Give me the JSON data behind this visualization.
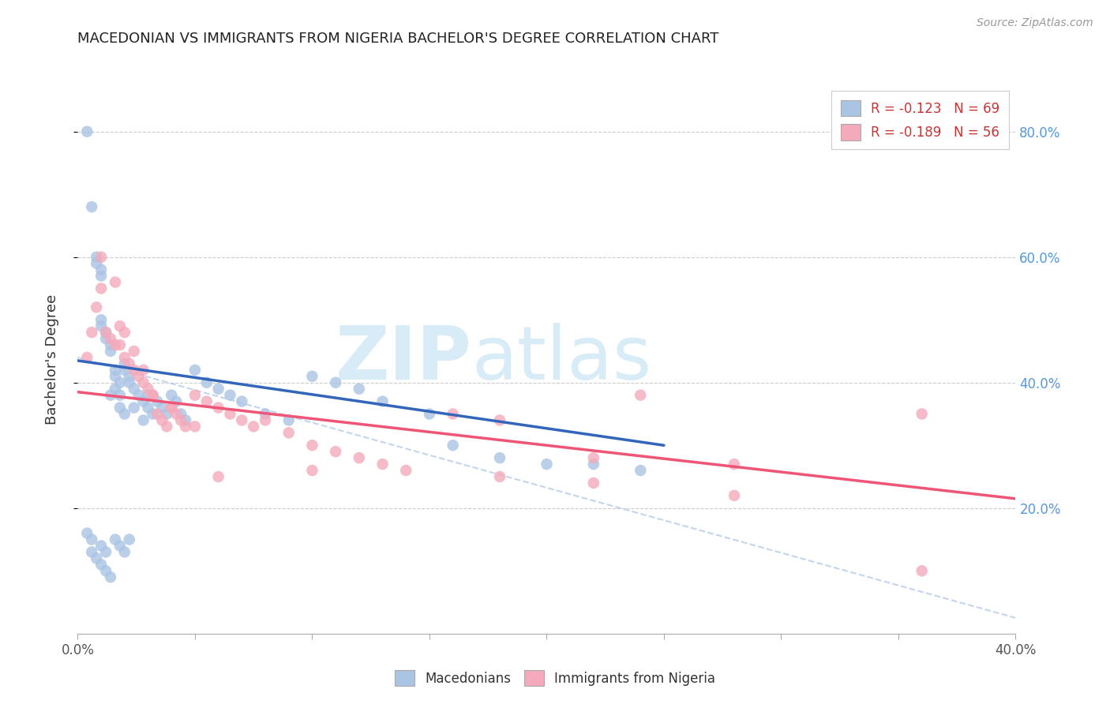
{
  "title": "MACEDONIAN VS IMMIGRANTS FROM NIGERIA BACHELOR'S DEGREE CORRELATION CHART",
  "source": "Source: ZipAtlas.com",
  "ylabel": "Bachelor's Degree",
  "xlim": [
    0.0,
    0.4
  ],
  "ylim": [
    0.0,
    0.875
  ],
  "legend_blue_R": "R = -0.123",
  "legend_blue_N": "N = 69",
  "legend_pink_R": "R = -0.189",
  "legend_pink_N": "N = 56",
  "blue_color": "#aac4e4",
  "pink_color": "#f4aabb",
  "blue_line_color": "#3366bb",
  "pink_line_color": "#ee5577",
  "dashed_color": "#aac4e4",
  "right_tick_color": "#5599dd",
  "ylabel_right_ticks": [
    "20.0%",
    "40.0%",
    "60.0%",
    "80.0%"
  ],
  "ylabel_right_vals": [
    0.2,
    0.4,
    0.6,
    0.8
  ],
  "blue_scatter_x": [
    0.004,
    0.006,
    0.008,
    0.008,
    0.01,
    0.01,
    0.01,
    0.01,
    0.012,
    0.012,
    0.014,
    0.014,
    0.014,
    0.016,
    0.016,
    0.016,
    0.018,
    0.018,
    0.018,
    0.02,
    0.02,
    0.02,
    0.022,
    0.022,
    0.024,
    0.024,
    0.026,
    0.028,
    0.028,
    0.03,
    0.03,
    0.032,
    0.034,
    0.036,
    0.038,
    0.04,
    0.042,
    0.044,
    0.046,
    0.05,
    0.055,
    0.06,
    0.065,
    0.07,
    0.08,
    0.09,
    0.1,
    0.11,
    0.12,
    0.13,
    0.15,
    0.16,
    0.18,
    0.2,
    0.22,
    0.24,
    0.006,
    0.01,
    0.012,
    0.016,
    0.018,
    0.02,
    0.022,
    0.004,
    0.006,
    0.008,
    0.01,
    0.012,
    0.014
  ],
  "blue_scatter_y": [
    0.8,
    0.68,
    0.6,
    0.59,
    0.58,
    0.57,
    0.5,
    0.49,
    0.48,
    0.47,
    0.46,
    0.45,
    0.38,
    0.42,
    0.41,
    0.39,
    0.4,
    0.38,
    0.36,
    0.43,
    0.42,
    0.35,
    0.41,
    0.4,
    0.39,
    0.36,
    0.38,
    0.37,
    0.34,
    0.38,
    0.36,
    0.35,
    0.37,
    0.36,
    0.35,
    0.38,
    0.37,
    0.35,
    0.34,
    0.42,
    0.4,
    0.39,
    0.38,
    0.37,
    0.35,
    0.34,
    0.41,
    0.4,
    0.39,
    0.37,
    0.35,
    0.3,
    0.28,
    0.27,
    0.27,
    0.26,
    0.15,
    0.14,
    0.13,
    0.15,
    0.14,
    0.13,
    0.15,
    0.16,
    0.13,
    0.12,
    0.11,
    0.1,
    0.09
  ],
  "pink_scatter_x": [
    0.004,
    0.006,
    0.008,
    0.01,
    0.012,
    0.014,
    0.016,
    0.018,
    0.02,
    0.022,
    0.024,
    0.026,
    0.028,
    0.03,
    0.032,
    0.034,
    0.036,
    0.038,
    0.04,
    0.042,
    0.044,
    0.046,
    0.05,
    0.055,
    0.06,
    0.065,
    0.07,
    0.075,
    0.08,
    0.09,
    0.1,
    0.11,
    0.12,
    0.13,
    0.14,
    0.16,
    0.18,
    0.22,
    0.24,
    0.28,
    0.36,
    0.01,
    0.016,
    0.018,
    0.02,
    0.024,
    0.028,
    0.032,
    0.04,
    0.05,
    0.06,
    0.1,
    0.18,
    0.22,
    0.28,
    0.36
  ],
  "pink_scatter_y": [
    0.44,
    0.48,
    0.52,
    0.55,
    0.48,
    0.47,
    0.46,
    0.46,
    0.44,
    0.43,
    0.42,
    0.41,
    0.4,
    0.39,
    0.38,
    0.35,
    0.34,
    0.33,
    0.36,
    0.35,
    0.34,
    0.33,
    0.38,
    0.37,
    0.36,
    0.35,
    0.34,
    0.33,
    0.34,
    0.32,
    0.3,
    0.29,
    0.28,
    0.27,
    0.26,
    0.35,
    0.34,
    0.28,
    0.38,
    0.27,
    0.35,
    0.6,
    0.56,
    0.49,
    0.48,
    0.45,
    0.42,
    0.38,
    0.36,
    0.33,
    0.25,
    0.26,
    0.25,
    0.24,
    0.22,
    0.1
  ],
  "blue_trend_x": [
    0.0,
    0.25
  ],
  "blue_trend_y": [
    0.435,
    0.3
  ],
  "pink_trend_x": [
    0.0,
    0.4
  ],
  "pink_trend_y": [
    0.385,
    0.215
  ],
  "dashed_trend_x": [
    0.0,
    0.4
  ],
  "dashed_trend_y": [
    0.44,
    0.025
  ],
  "watermark_text": "ZIPatlas",
  "watermark_zip_color": "#d8ecf8",
  "watermark_atlas_color": "#d8ecf8"
}
